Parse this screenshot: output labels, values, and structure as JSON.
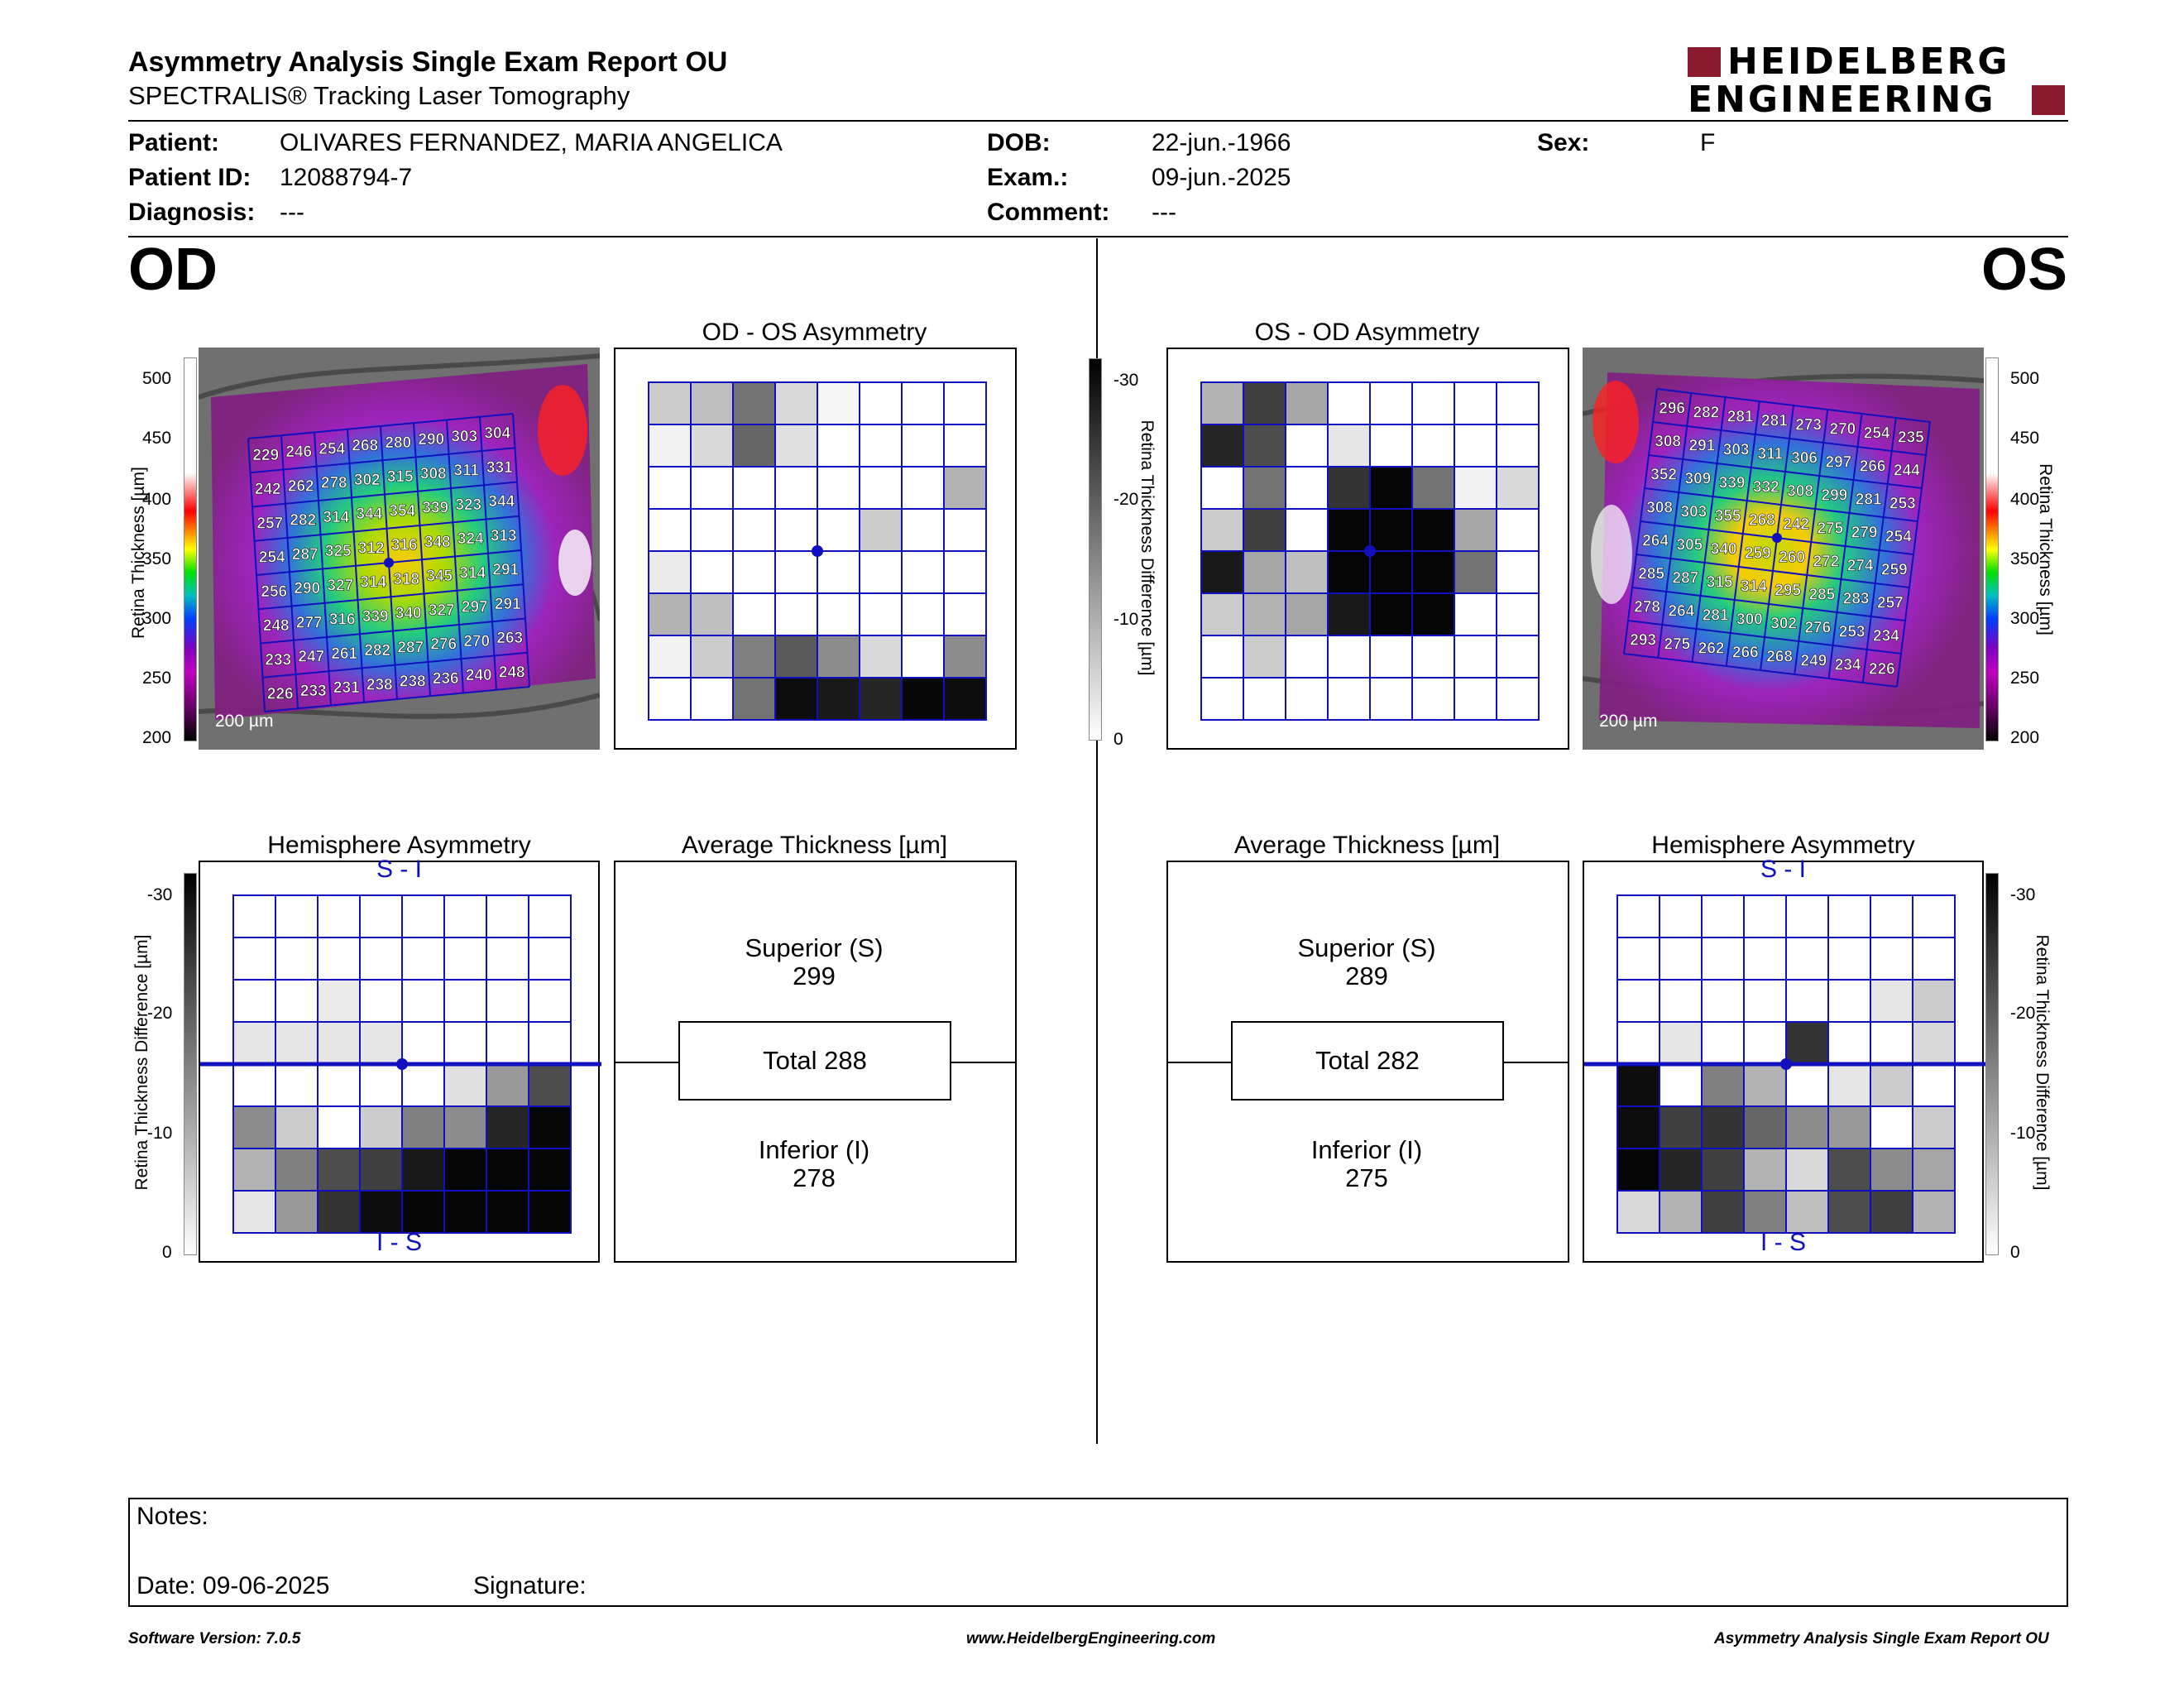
{
  "header": {
    "title": "Asymmetry Analysis Single Exam Report OU",
    "subtitle": "SPECTRALIS® Tracking Laser Tomography",
    "logo_line1": "HEIDELBERG",
    "logo_line2": "ENGINEERING"
  },
  "patient": {
    "patient_label": "Patient:",
    "patient_value": "OLIVARES FERNANDEZ, MARIA ANGELICA",
    "id_label": "Patient ID:",
    "id_value": "12088794-7",
    "diag_label": "Diagnosis:",
    "diag_value": "---",
    "dob_label": "DOB:",
    "dob_value": "22-jun.-1966",
    "exam_label": "Exam.:",
    "exam_value": "09-jun.-2025",
    "comment_label": "Comment:",
    "comment_value": "---",
    "sex_label": "Sex:",
    "sex_value": "F"
  },
  "od": {
    "eye": "OD",
    "asym_title": "OD - OS Asymmetry",
    "hemi_title": "Hemisphere Asymmetry",
    "avg_title": "Average Thickness [µm]",
    "superior_label": "Superior (S)",
    "superior_value": "299",
    "total_label": "Total 288",
    "inferior_label": "Inferior (I)",
    "inferior_value": "278",
    "hemi_top": "S - I",
    "hemi_bottom": "I - S",
    "scale_label": "200 µm",
    "thickness_grid": [
      [
        229,
        246,
        254,
        268,
        280,
        290,
        303,
        304
      ],
      [
        242,
        262,
        278,
        302,
        315,
        308,
        311,
        331
      ],
      [
        257,
        282,
        314,
        344,
        354,
        339,
        323,
        344
      ],
      [
        254,
        287,
        325,
        312,
        316,
        348,
        324,
        313
      ],
      [
        256,
        290,
        327,
        314,
        318,
        345,
        314,
        291
      ],
      [
        248,
        277,
        316,
        339,
        340,
        327,
        297,
        291
      ],
      [
        233,
        247,
        261,
        282,
        287,
        276,
        270,
        263
      ],
      [
        226,
        233,
        231,
        238,
        238,
        236,
        240,
        248
      ]
    ],
    "asym_grid": [
      [
        0.2,
        0.25,
        0.55,
        0.15,
        0.03,
        0,
        0,
        0
      ],
      [
        0.05,
        0.15,
        0.6,
        0.12,
        0,
        0,
        0,
        0
      ],
      [
        0,
        0,
        0,
        0,
        0,
        0,
        0,
        0.3
      ],
      [
        0,
        0,
        0,
        0,
        0,
        0.2,
        0,
        0
      ],
      [
        0.08,
        0,
        0,
        0,
        0,
        0,
        0,
        0
      ],
      [
        0.3,
        0.25,
        0,
        0,
        0,
        0,
        0,
        0
      ],
      [
        0.05,
        0.2,
        0.5,
        0.65,
        0.45,
        0.15,
        0,
        0.45
      ],
      [
        0,
        0,
        0.55,
        0.95,
        0.9,
        0.85,
        0.97,
        0.95
      ]
    ],
    "hemi_grid": [
      [
        0,
        0,
        0,
        0,
        0,
        0,
        0,
        0
      ],
      [
        0,
        0,
        0,
        0,
        0,
        0,
        0,
        0
      ],
      [
        0,
        0,
        0.08,
        0,
        0,
        0,
        0,
        0
      ],
      [
        0.1,
        0.1,
        0.1,
        0.1,
        0,
        0,
        0,
        0
      ],
      [
        0,
        0,
        0,
        0,
        0,
        0.12,
        0.4,
        0.7
      ],
      [
        0.45,
        0.2,
        0,
        0.2,
        0.5,
        0.45,
        0.85,
        0.97
      ],
      [
        0.3,
        0.5,
        0.7,
        0.75,
        0.9,
        0.98,
        0.98,
        0.98
      ],
      [
        0.1,
        0.4,
        0.8,
        0.95,
        0.98,
        0.98,
        0.98,
        0.98
      ]
    ]
  },
  "os": {
    "eye": "OS",
    "asym_title": "OS - OD Asymmetry",
    "hemi_title": "Hemisphere Asymmetry",
    "avg_title": "Average Thickness [µm]",
    "superior_label": "Superior (S)",
    "superior_value": "289",
    "total_label": "Total 282",
    "inferior_label": "Inferior (I)",
    "inferior_value": "275",
    "hemi_top": "S - I",
    "hemi_bottom": "I - S",
    "scale_label": "200 µm",
    "thickness_grid": [
      [
        296,
        282,
        281,
        281,
        273,
        270,
        254,
        235
      ],
      [
        308,
        291,
        303,
        311,
        306,
        297,
        266,
        244
      ],
      [
        352,
        309,
        339,
        332,
        308,
        299,
        281,
        253
      ],
      [
        308,
        303,
        355,
        268,
        242,
        275,
        279,
        254
      ],
      [
        264,
        305,
        340,
        259,
        260,
        272,
        274,
        259
      ],
      [
        285,
        287,
        315,
        314,
        295,
        285,
        283,
        257
      ],
      [
        278,
        264,
        281,
        300,
        302,
        276,
        253,
        234
      ],
      [
        293,
        275,
        262,
        266,
        268,
        249,
        234,
        226
      ]
    ],
    "asym_grid": [
      [
        0.3,
        0.75,
        0.35,
        0,
        0,
        0,
        0,
        0
      ],
      [
        0.85,
        0.7,
        0,
        0.1,
        0,
        0,
        0,
        0
      ],
      [
        0,
        0.55,
        0,
        0.8,
        0.98,
        0.55,
        0.05,
        0.15
      ],
      [
        0.2,
        0.75,
        0,
        0.98,
        0.98,
        0.98,
        0.35,
        0
      ],
      [
        0.9,
        0.35,
        0.25,
        0.98,
        0.98,
        0.98,
        0.55,
        0
      ],
      [
        0.2,
        0.3,
        0.35,
        0.9,
        0.98,
        0.98,
        0,
        0
      ],
      [
        0,
        0.2,
        0,
        0,
        0,
        0,
        0,
        0
      ],
      [
        0,
        0,
        0,
        0,
        0,
        0,
        0,
        0
      ]
    ],
    "hemi_grid": [
      [
        0,
        0,
        0,
        0,
        0,
        0,
        0,
        0
      ],
      [
        0,
        0,
        0,
        0,
        0,
        0,
        0,
        0
      ],
      [
        0,
        0,
        0,
        0,
        0,
        0,
        0.1,
        0.2
      ],
      [
        0,
        0.1,
        0,
        0,
        0.8,
        0,
        0,
        0.15
      ],
      [
        0.95,
        0,
        0.5,
        0.3,
        0,
        0.1,
        0.2,
        0
      ],
      [
        0.95,
        0.75,
        0.8,
        0.6,
        0.45,
        0.4,
        0,
        0.2
      ],
      [
        0.98,
        0.85,
        0.75,
        0.3,
        0.15,
        0.7,
        0.45,
        0.35
      ],
      [
        0.15,
        0.3,
        0.75,
        0.5,
        0.25,
        0.7,
        0.75,
        0.3
      ]
    ]
  },
  "axes": {
    "thickness_label": "Retina Thickness [µm]",
    "thickness_ticks": [
      "500",
      "450",
      "400",
      "350",
      "300",
      "250",
      "200"
    ],
    "diff_label": "Retina Thickness Difference [µm]",
    "diff_ticks": [
      "-30",
      "-20",
      "-10",
      "0"
    ]
  },
  "notes": {
    "label": "Notes:",
    "date": "Date: 09-06-2025",
    "signature": "Signature:"
  },
  "footer": {
    "version": "Software Version: 7.0.5",
    "url": "www.HeidelbergEngineering.com",
    "report": "Asymmetry Analysis Single Exam Report OU"
  },
  "colors": {
    "logo_red": "#8b1a2e",
    "grid_blue": "#1010c0"
  }
}
